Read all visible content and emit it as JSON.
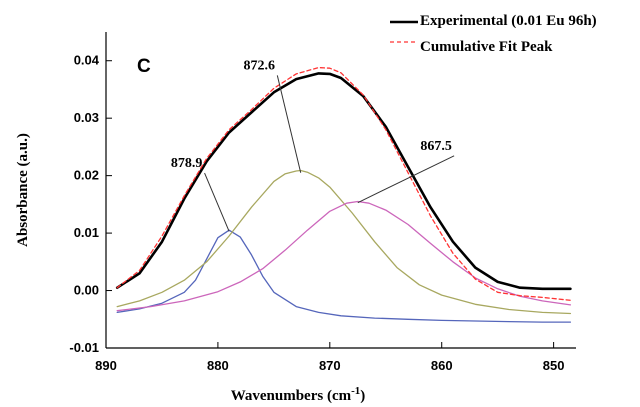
{
  "chart_data": {
    "type": "line",
    "panel_label": "C",
    "xlabel": "Wavenumbers (cm",
    "xlabel_sup": "-1",
    "xlabel_close": ")",
    "ylabel": "Absorbance (a.u.)",
    "xlim": [
      890,
      848
    ],
    "ylim": [
      -0.01,
      0.045
    ],
    "x_reversed": true,
    "x_ticks": [
      890,
      880,
      870,
      860,
      850
    ],
    "x_tick_labels": [
      "890",
      "880",
      "870",
      "860",
      "850"
    ],
    "y_ticks": [
      -0.01,
      0.0,
      0.01,
      0.02,
      0.03,
      0.04
    ],
    "y_tick_labels": [
      "-0.01",
      "0.00",
      "0.01",
      "0.02",
      "0.03",
      "0.04"
    ],
    "legend_position": "top-right",
    "series": [
      {
        "name": "Experimental (0.01 Eu 96h)",
        "color": "#000000",
        "style": "solid",
        "x": [
          889,
          887,
          885,
          883,
          881,
          879,
          877,
          875,
          873,
          871,
          870,
          869,
          867,
          865,
          863,
          861,
          859,
          857,
          855,
          853,
          851,
          848.5
        ],
        "y": [
          0.0005,
          0.003,
          0.0085,
          0.016,
          0.0225,
          0.0275,
          0.031,
          0.0345,
          0.0368,
          0.0378,
          0.0377,
          0.037,
          0.0338,
          0.0285,
          0.0215,
          0.0145,
          0.0085,
          0.004,
          0.0015,
          0.0005,
          0.0003,
          0.0003
        ]
      },
      {
        "name": "Cumulative Fit Peak",
        "color": "#ff3333",
        "style": "dashed",
        "x": [
          889,
          887,
          885,
          883,
          881,
          879,
          877,
          875,
          873,
          871,
          870,
          869,
          867,
          865,
          863,
          861,
          859,
          857,
          855,
          853,
          851,
          848.5
        ],
        "y": [
          0.0005,
          0.0035,
          0.0095,
          0.0165,
          0.023,
          0.028,
          0.0315,
          0.0352,
          0.0377,
          0.0388,
          0.0387,
          0.0379,
          0.034,
          0.028,
          0.0205,
          0.013,
          0.0065,
          0.002,
          -0.0003,
          -0.0009,
          -0.0012,
          -0.0017
        ]
      },
      {
        "name": "",
        "color": "#5566bb",
        "style": "solid",
        "x": [
          889,
          887,
          885,
          883,
          882,
          881,
          880,
          879,
          878,
          877,
          876,
          875,
          873,
          871,
          869,
          866,
          863,
          860,
          857,
          854,
          851,
          848.5
        ],
        "y": [
          -0.0038,
          -0.0032,
          -0.0022,
          -0.0003,
          0.0018,
          0.0055,
          0.0092,
          0.0105,
          0.0093,
          0.0062,
          0.0025,
          -0.0003,
          -0.0028,
          -0.0038,
          -0.0044,
          -0.0048,
          -0.005,
          -0.0052,
          -0.0053,
          -0.0054,
          -0.0055,
          -0.0055
        ]
      },
      {
        "name": "",
        "color": "#a8a860",
        "style": "solid",
        "x": [
          889,
          887,
          885,
          883,
          881,
          879,
          877,
          875,
          874,
          873,
          872.6,
          872,
          871,
          870,
          868,
          866,
          864,
          862,
          860,
          857,
          854,
          851,
          848.5
        ],
        "y": [
          -0.0028,
          -0.0018,
          -0.0003,
          0.0018,
          0.005,
          0.0095,
          0.0145,
          0.019,
          0.0203,
          0.0208,
          0.0209,
          0.0206,
          0.0196,
          0.018,
          0.0135,
          0.0085,
          0.004,
          0.001,
          -0.0008,
          -0.0024,
          -0.0033,
          -0.0038,
          -0.004
        ]
      },
      {
        "name": "",
        "color": "#cc66bb",
        "style": "solid",
        "x": [
          889,
          886,
          883,
          880,
          878,
          876,
          874,
          872,
          870,
          868.5,
          867.5,
          866.5,
          865,
          863,
          861,
          859,
          857,
          855,
          853,
          851,
          848.5
        ],
        "y": [
          -0.0035,
          -0.0028,
          -0.0018,
          -0.0002,
          0.0015,
          0.0038,
          0.007,
          0.0105,
          0.0138,
          0.0152,
          0.0155,
          0.0152,
          0.014,
          0.0115,
          0.0082,
          0.005,
          0.0022,
          0.0003,
          -0.001,
          -0.0018,
          -0.0025
        ]
      }
    ],
    "annotations": [
      {
        "text": "878.9",
        "peak_x": 879.0,
        "peak_y": 0.0103,
        "label_x": 882.8,
        "label_y": 0.0215
      },
      {
        "text": "872.6",
        "peak_x": 872.6,
        "peak_y": 0.0205,
        "label_x": 876.3,
        "label_y": 0.0385
      },
      {
        "text": "867.5",
        "peak_x": 867.5,
        "peak_y": 0.0153,
        "label_x": 860.5,
        "label_y": 0.0245
      }
    ]
  }
}
